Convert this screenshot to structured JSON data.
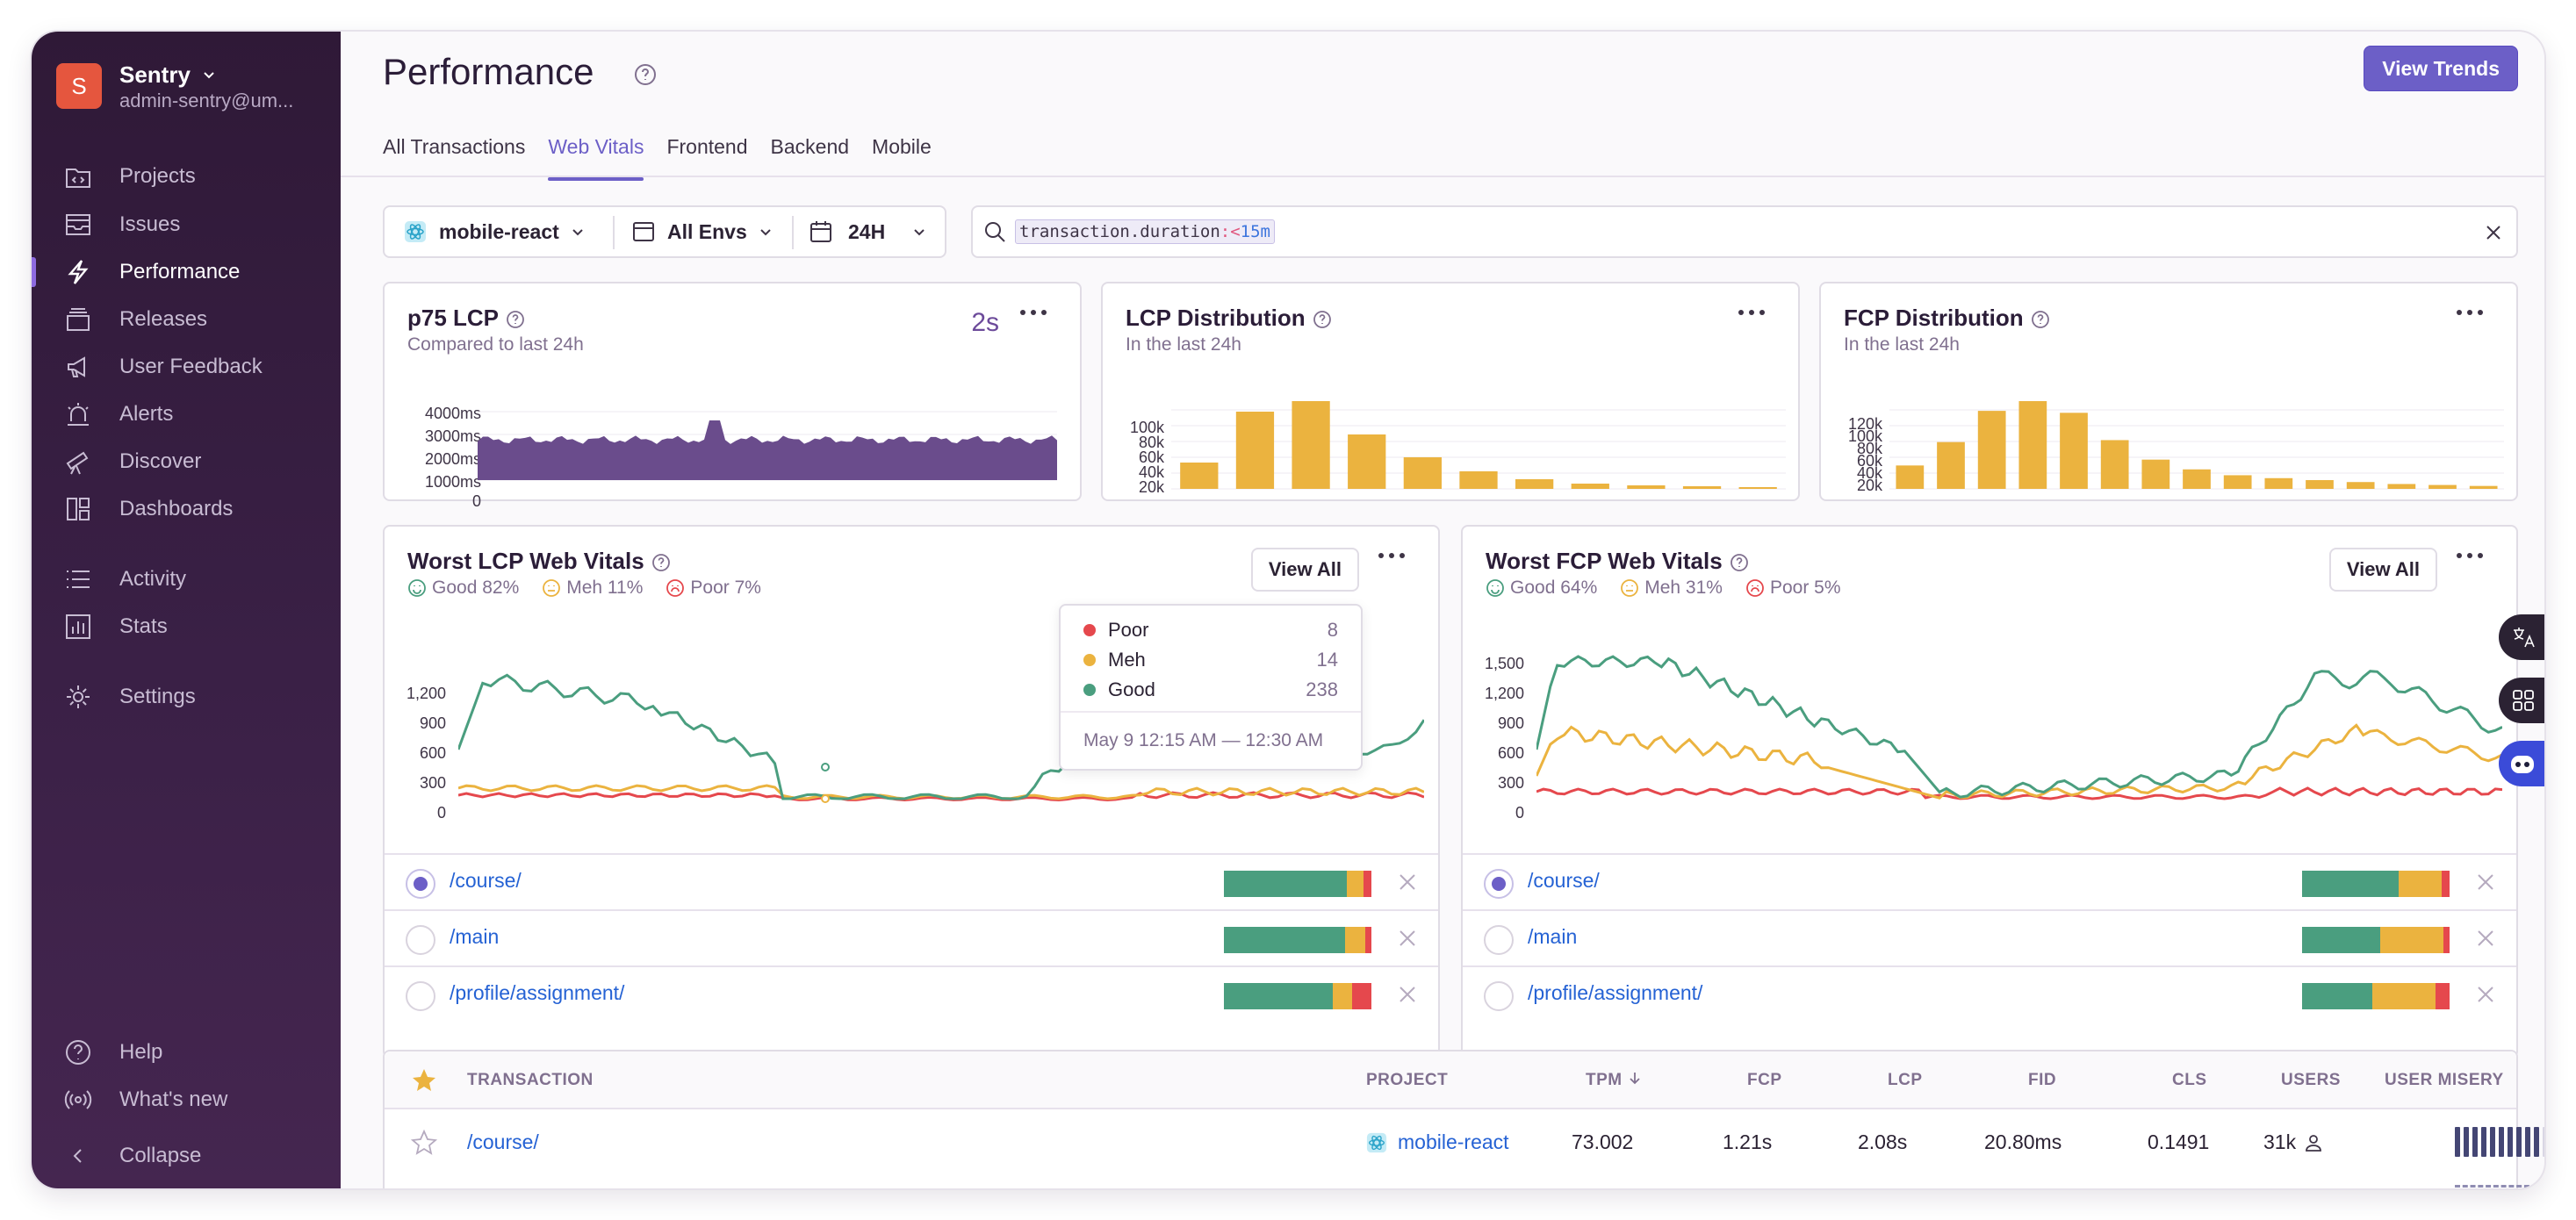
{
  "org": {
    "avatar": "S",
    "name": "Sentry",
    "email": "admin-sentry@um..."
  },
  "nav": {
    "main": [
      {
        "label": "Projects"
      },
      {
        "label": "Issues"
      },
      {
        "label": "Performance"
      },
      {
        "label": "Releases"
      },
      {
        "label": "User Feedback"
      },
      {
        "label": "Alerts"
      },
      {
        "label": "Discover"
      },
      {
        "label": "Dashboards"
      }
    ],
    "secondary": [
      {
        "label": "Activity"
      },
      {
        "label": "Stats"
      }
    ],
    "settings": "Settings",
    "help": "Help",
    "whats_new": "What's new",
    "collapse": "Collapse"
  },
  "page": {
    "title": "Performance",
    "view_trends": "View Trends",
    "tabs": [
      "All Transactions",
      "Web Vitals",
      "Frontend",
      "Backend",
      "Mobile"
    ],
    "active_tab": "Web Vitals"
  },
  "filters": {
    "project": "mobile-react",
    "env": "All Envs",
    "period": "24H"
  },
  "search": {
    "key": "transaction.duration",
    "op": ":<",
    "value": "15m"
  },
  "cards": {
    "p75lcp": {
      "title": "p75 LCP",
      "subtitle": "Compared to last 24h",
      "value": "2s",
      "yticks": [
        "4000ms",
        "3000ms",
        "2000ms",
        "1000ms",
        "0"
      ]
    },
    "lcpdist": {
      "title": "LCP Distribution",
      "subtitle": "In the last 24h",
      "yticks": [
        "100k",
        "80k",
        "60k",
        "40k",
        "20k"
      ]
    },
    "fcpdist": {
      "title": "FCP Distribution",
      "subtitle": "In the last 24h",
      "yticks": [
        "120k",
        "100k",
        "80k",
        "60k",
        "40k",
        "20k"
      ]
    }
  },
  "worst_lcp": {
    "title": "Worst LCP Web Vitals",
    "good": "Good 82%",
    "meh": "Meh 11%",
    "poor": "Poor 7%",
    "view_all": "View All",
    "yticks": [
      "1,200",
      "900",
      "600",
      "300",
      "0"
    ],
    "rows": [
      {
        "name": "/course/",
        "good": 76,
        "meh": 10,
        "poor": 5
      },
      {
        "name": "/main",
        "good": 75,
        "meh": 12,
        "poor": 4
      },
      {
        "name": "/profile/assignment/",
        "good": 67,
        "meh": 12,
        "poor": 12
      }
    ],
    "tooltip": {
      "poor_label": "Poor",
      "poor": "8",
      "meh_label": "Meh",
      "meh": "14",
      "good_label": "Good",
      "good": "238",
      "date": "May 9 12:15 AM — 12:30 AM"
    }
  },
  "worst_fcp": {
    "title": "Worst FCP Web Vitals",
    "good": "Good 64%",
    "meh": "Meh 31%",
    "poor": "Poor 5%",
    "view_all": "View All",
    "yticks": [
      "1,500",
      "1,200",
      "900",
      "600",
      "300",
      "0"
    ],
    "rows": [
      {
        "name": "/course/",
        "good": 60,
        "meh": 27,
        "poor": 5
      },
      {
        "name": "/main",
        "good": 49,
        "meh": 40,
        "poor": 4
      },
      {
        "name": "/profile/assignment/",
        "good": 44,
        "meh": 39,
        "poor": 9
      }
    ]
  },
  "table": {
    "headers": [
      "TRANSACTION",
      "PROJECT",
      "TPM",
      "FCP",
      "LCP",
      "FID",
      "CLS",
      "USERS",
      "USER MISERY"
    ],
    "row": {
      "transaction": "/course/",
      "project": "mobile-react",
      "tpm": "73.002",
      "fcp": "1.21s",
      "lcp": "2.08s",
      "fid": "20.80ms",
      "cls": "0.1491",
      "users": "31k",
      "misery": 0.85
    }
  },
  "colors": {
    "accent": "#6c5fc7",
    "good": "#4a9e7f",
    "meh": "#ebb33f",
    "poor": "#e5484d",
    "lcp_area": "#6a4c8c",
    "dist_bar": "#ebb33f"
  }
}
